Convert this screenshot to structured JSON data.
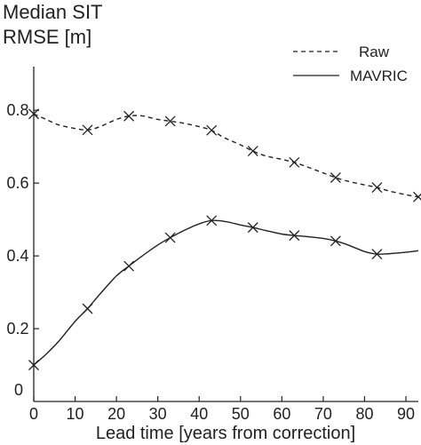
{
  "chart_data": {
    "type": "line",
    "title_lines": [
      "Median SIT",
      "RMSE [m]"
    ],
    "xlabel": "Lead time [years from correction]",
    "ylabel": "",
    "xlim": [
      0,
      93
    ],
    "ylim": [
      0,
      0.92
    ],
    "x_ticks": [
      0,
      10,
      20,
      30,
      40,
      50,
      60,
      70,
      80,
      90
    ],
    "y_ticks": [
      0.2,
      0.4,
      0.6,
      0.8
    ],
    "y_tick_labels": [
      "0.2",
      "0.4",
      "0.6",
      "0.8"
    ],
    "grid": false,
    "legend_position": "top-right",
    "series": [
      {
        "name": "Raw",
        "line_style": "dashed",
        "color": "#222222",
        "curve": [
          [
            0,
            0.79
          ],
          [
            3,
            0.775
          ],
          [
            6,
            0.76
          ],
          [
            10,
            0.75
          ],
          [
            13,
            0.746
          ],
          [
            16,
            0.755
          ],
          [
            20,
            0.775
          ],
          [
            23,
            0.784
          ],
          [
            26,
            0.785
          ],
          [
            30,
            0.775
          ],
          [
            33,
            0.77
          ],
          [
            36,
            0.765
          ],
          [
            40,
            0.755
          ],
          [
            43,
            0.745
          ],
          [
            46,
            0.725
          ],
          [
            50,
            0.705
          ],
          [
            53,
            0.688
          ],
          [
            56,
            0.675
          ],
          [
            60,
            0.665
          ],
          [
            63,
            0.657
          ],
          [
            66,
            0.645
          ],
          [
            70,
            0.628
          ],
          [
            73,
            0.615
          ],
          [
            76,
            0.605
          ],
          [
            80,
            0.595
          ],
          [
            83,
            0.588
          ],
          [
            86,
            0.578
          ],
          [
            90,
            0.568
          ],
          [
            93,
            0.562
          ]
        ],
        "markers": [
          [
            0,
            0.79
          ],
          [
            13,
            0.746
          ],
          [
            23,
            0.784
          ],
          [
            33,
            0.77
          ],
          [
            43,
            0.745
          ],
          [
            53,
            0.688
          ],
          [
            63,
            0.657
          ],
          [
            73,
            0.615
          ],
          [
            83,
            0.588
          ],
          [
            93,
            0.562
          ]
        ]
      },
      {
        "name": "MAVRIC",
        "line_style": "solid",
        "color": "#222222",
        "curve": [
          [
            0,
            0.1
          ],
          [
            3,
            0.13
          ],
          [
            6,
            0.165
          ],
          [
            10,
            0.22
          ],
          [
            13,
            0.255
          ],
          [
            16,
            0.295
          ],
          [
            20,
            0.345
          ],
          [
            23,
            0.372
          ],
          [
            26,
            0.398
          ],
          [
            30,
            0.43
          ],
          [
            33,
            0.45
          ],
          [
            36,
            0.468
          ],
          [
            40,
            0.488
          ],
          [
            43,
            0.497
          ],
          [
            46,
            0.495
          ],
          [
            50,
            0.485
          ],
          [
            53,
            0.478
          ],
          [
            56,
            0.47
          ],
          [
            60,
            0.46
          ],
          [
            63,
            0.456
          ],
          [
            66,
            0.453
          ],
          [
            70,
            0.448
          ],
          [
            73,
            0.441
          ],
          [
            76,
            0.43
          ],
          [
            80,
            0.412
          ],
          [
            83,
            0.405
          ],
          [
            86,
            0.406
          ],
          [
            90,
            0.41
          ],
          [
            93,
            0.414
          ]
        ],
        "markers": [
          [
            0,
            0.1
          ],
          [
            13,
            0.255
          ],
          [
            23,
            0.372
          ],
          [
            33,
            0.45
          ],
          [
            43,
            0.497
          ],
          [
            53,
            0.478
          ],
          [
            63,
            0.456
          ],
          [
            73,
            0.441
          ],
          [
            83,
            0.405
          ]
        ]
      }
    ]
  }
}
